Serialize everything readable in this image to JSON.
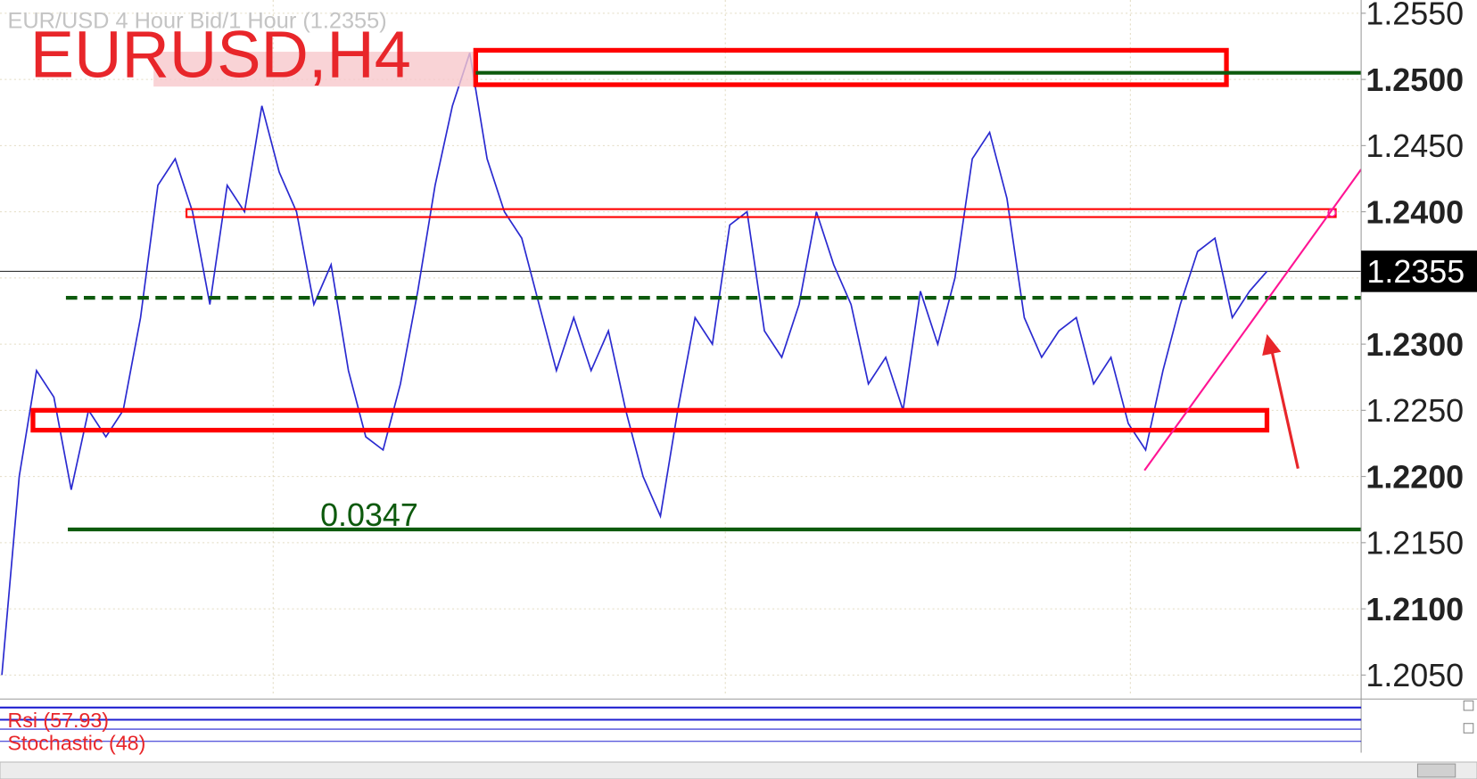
{
  "chart_data": {
    "type": "line",
    "header": "EUR/USD 4 Hour Bid/1 Hour (1.2355)",
    "title": "EURUSD,H4",
    "values": [
      1.205,
      1.22,
      1.228,
      1.226,
      1.219,
      1.225,
      1.223,
      1.225,
      1.232,
      1.242,
      1.244,
      1.24,
      1.233,
      1.242,
      1.24,
      1.248,
      1.243,
      1.24,
      1.233,
      1.236,
      1.228,
      1.223,
      1.222,
      1.227,
      1.234,
      1.242,
      1.248,
      1.252,
      1.244,
      1.24,
      1.238,
      1.233,
      1.228,
      1.232,
      1.228,
      1.231,
      1.225,
      1.22,
      1.217,
      1.225,
      1.232,
      1.23,
      1.239,
      1.24,
      1.231,
      1.229,
      1.233,
      1.24,
      1.236,
      1.233,
      1.227,
      1.229,
      1.225,
      1.234,
      1.23,
      1.235,
      1.244,
      1.246,
      1.241,
      1.232,
      1.229,
      1.231,
      1.232,
      1.227,
      1.229,
      1.224,
      1.222,
      1.228,
      1.233,
      1.237,
      1.238,
      1.232,
      1.234,
      1.2355
    ],
    "color": "#2a2ad0",
    "ylim": [
      1.2034,
      1.256
    ],
    "yticks": [
      {
        "value": 1.255,
        "label": "1.2550"
      },
      {
        "value": 1.25,
        "label": "1.2500"
      },
      {
        "value": 1.245,
        "label": "1.2450"
      },
      {
        "value": 1.24,
        "label": "1.2400"
      },
      {
        "value": 1.235,
        "label": "1.2350"
      },
      {
        "value": 1.23,
        "label": "1.2300"
      },
      {
        "value": 1.225,
        "label": "1.2250"
      },
      {
        "value": 1.22,
        "label": "1.2200"
      },
      {
        "value": 1.215,
        "label": "1.2150"
      },
      {
        "value": 1.21,
        "label": "1.2100"
      },
      {
        "value": 1.205,
        "label": "1.2050"
      }
    ],
    "current_price": 1.2355,
    "resistance": 1.2505,
    "support": 1.216,
    "pivot": 1.2335,
    "range_annotation": 0.0347,
    "zones": [
      [
        1.2496,
        1.2522
      ],
      [
        1.2396,
        1.2402
      ],
      [
        1.2235,
        1.225
      ]
    ],
    "indicators": [
      "Rsi (57.93)",
      "Stochastic (48)"
    ],
    "grid": true
  }
}
